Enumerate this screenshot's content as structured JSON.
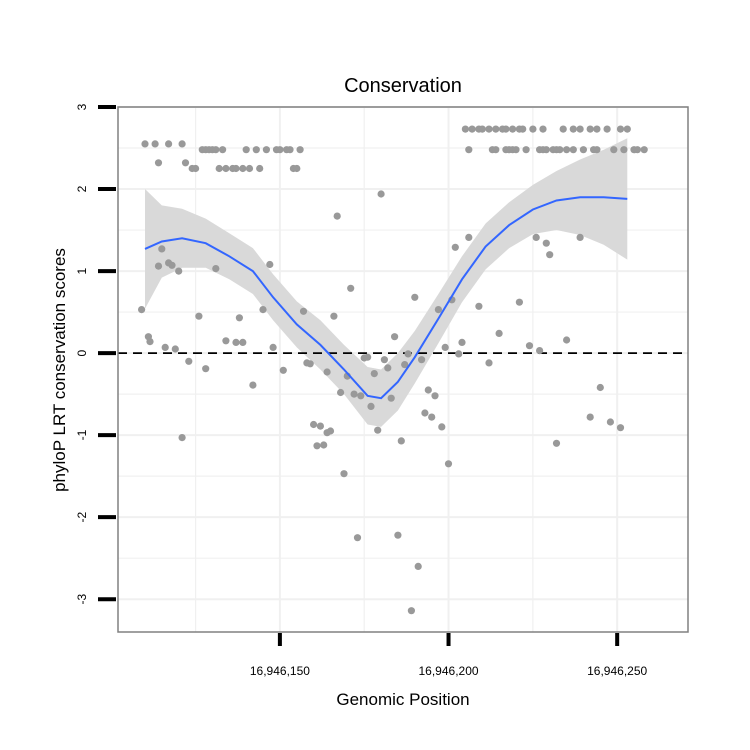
{
  "chart_data": {
    "type": "scatter",
    "title": "Conservation",
    "xlabel": "Genomic Position",
    "ylabel": "phyloP LRT conservation scores",
    "xlim": [
      16946102,
      16946271
    ],
    "ylim": [
      -3.4,
      3.0
    ],
    "xticks": [
      {
        "value": 16946150,
        "label": "16,946,150"
      },
      {
        "value": 16946200,
        "label": "16,946,200"
      },
      {
        "value": 16946250,
        "label": "16,946,250"
      }
    ],
    "yticks": [
      {
        "value": -3,
        "label": "-3"
      },
      {
        "value": -2,
        "label": "-2"
      },
      {
        "value": -1,
        "label": "-1"
      },
      {
        "value": 0,
        "label": "0"
      },
      {
        "value": 1,
        "label": "1"
      },
      {
        "value": 2,
        "label": "2"
      },
      {
        "value": 3,
        "label": "3"
      }
    ],
    "reference_line": {
      "y": 0,
      "style": "dashed"
    },
    "grid": true,
    "colors": {
      "points": "#999999",
      "smooth": "#3366ff",
      "ribbon": "#d9d9d9",
      "panel_border": "#808080"
    },
    "points": [
      {
        "x": 16946110,
        "y": 2.55
      },
      {
        "x": 16946113,
        "y": 2.55
      },
      {
        "x": 16946117,
        "y": 2.55
      },
      {
        "x": 16946121,
        "y": 2.55
      },
      {
        "x": 16946114,
        "y": 2.32
      },
      {
        "x": 16946122,
        "y": 2.32
      },
      {
        "x": 16946124,
        "y": 2.25
      },
      {
        "x": 16946125,
        "y": 2.25
      },
      {
        "x": 16946127,
        "y": 2.48
      },
      {
        "x": 16946128,
        "y": 2.48
      },
      {
        "x": 16946129,
        "y": 2.48
      },
      {
        "x": 16946130,
        "y": 2.48
      },
      {
        "x": 16946131,
        "y": 2.48
      },
      {
        "x": 16946133,
        "y": 2.48
      },
      {
        "x": 16946132,
        "y": 2.25
      },
      {
        "x": 16946134,
        "y": 2.25
      },
      {
        "x": 16946136,
        "y": 2.25
      },
      {
        "x": 16946137,
        "y": 2.25
      },
      {
        "x": 16946139,
        "y": 2.25
      },
      {
        "x": 16946141,
        "y": 2.25
      },
      {
        "x": 16946144,
        "y": 2.25
      },
      {
        "x": 16946140,
        "y": 2.48
      },
      {
        "x": 16946143,
        "y": 2.48
      },
      {
        "x": 16946146,
        "y": 2.48
      },
      {
        "x": 16946149,
        "y": 2.48
      },
      {
        "x": 16946150,
        "y": 2.48
      },
      {
        "x": 16946152,
        "y": 2.48
      },
      {
        "x": 16946153,
        "y": 2.48
      },
      {
        "x": 16946154,
        "y": 2.25
      },
      {
        "x": 16946155,
        "y": 2.25
      },
      {
        "x": 16946156,
        "y": 2.48
      },
      {
        "x": 16946109,
        "y": 0.53
      },
      {
        "x": 16946111,
        "y": 0.2
      },
      {
        "x": 16946111.5,
        "y": 0.14
      },
      {
        "x": 16946114,
        "y": 1.06
      },
      {
        "x": 16946115,
        "y": 1.27
      },
      {
        "x": 16946116,
        "y": 0.07
      },
      {
        "x": 16946117,
        "y": 1.1
      },
      {
        "x": 16946118,
        "y": 1.07
      },
      {
        "x": 16946120,
        "y": 1.0
      },
      {
        "x": 16946119,
        "y": 0.05
      },
      {
        "x": 16946121,
        "y": -1.03
      },
      {
        "x": 16946123,
        "y": -0.1
      },
      {
        "x": 16946126,
        "y": 0.45
      },
      {
        "x": 16946128,
        "y": -0.19
      },
      {
        "x": 16946131,
        "y": 1.03
      },
      {
        "x": 16946134,
        "y": 0.15
      },
      {
        "x": 16946137,
        "y": 0.13
      },
      {
        "x": 16946138,
        "y": 0.43
      },
      {
        "x": 16946139,
        "y": 0.13
      },
      {
        "x": 16946142,
        "y": -0.39
      },
      {
        "x": 16946145,
        "y": 0.53
      },
      {
        "x": 16946147,
        "y": 1.08
      },
      {
        "x": 16946148,
        "y": 0.07
      },
      {
        "x": 16946151,
        "y": -0.21
      },
      {
        "x": 16946157,
        "y": 0.51
      },
      {
        "x": 16946158,
        "y": -0.12
      },
      {
        "x": 16946159,
        "y": -0.13
      },
      {
        "x": 16946160,
        "y": -0.87
      },
      {
        "x": 16946161,
        "y": -1.13
      },
      {
        "x": 16946162,
        "y": -0.89
      },
      {
        "x": 16946163,
        "y": -1.12
      },
      {
        "x": 16946164,
        "y": -0.97
      },
      {
        "x": 16946164,
        "y": -0.23
      },
      {
        "x": 16946165,
        "y": -0.95
      },
      {
        "x": 16946166,
        "y": 0.45
      },
      {
        "x": 16946167,
        "y": 1.67
      },
      {
        "x": 16946168,
        "y": -0.48
      },
      {
        "x": 16946169,
        "y": -1.47
      },
      {
        "x": 16946170,
        "y": -0.28
      },
      {
        "x": 16946171,
        "y": 0.79
      },
      {
        "x": 16946172,
        "y": -0.5
      },
      {
        "x": 16946173,
        "y": -2.25
      },
      {
        "x": 16946174,
        "y": -0.52
      },
      {
        "x": 16946175,
        "y": -0.06
      },
      {
        "x": 16946176,
        "y": -0.05
      },
      {
        "x": 16946177,
        "y": -0.65
      },
      {
        "x": 16946178,
        "y": -0.25
      },
      {
        "x": 16946179,
        "y": -0.94
      },
      {
        "x": 16946180,
        "y": 1.94
      },
      {
        "x": 16946181,
        "y": -0.08
      },
      {
        "x": 16946182,
        "y": -0.18
      },
      {
        "x": 16946183,
        "y": -0.55
      },
      {
        "x": 16946184,
        "y": 0.2
      },
      {
        "x": 16946185,
        "y": -2.22
      },
      {
        "x": 16946186,
        "y": -1.07
      },
      {
        "x": 16946187,
        "y": -0.14
      },
      {
        "x": 16946188,
        "y": -0.01
      },
      {
        "x": 16946189,
        "y": -3.14
      },
      {
        "x": 16946190,
        "y": 0.68
      },
      {
        "x": 16946191,
        "y": -2.6
      },
      {
        "x": 16946192,
        "y": -0.08
      },
      {
        "x": 16946193,
        "y": -0.73
      },
      {
        "x": 16946194,
        "y": -0.45
      },
      {
        "x": 16946195,
        "y": -0.78
      },
      {
        "x": 16946196,
        "y": -0.52
      },
      {
        "x": 16946197,
        "y": 0.53
      },
      {
        "x": 16946198,
        "y": -0.9
      },
      {
        "x": 16946199,
        "y": 0.07
      },
      {
        "x": 16946200,
        "y": -1.35
      },
      {
        "x": 16946201,
        "y": 0.65
      },
      {
        "x": 16946202,
        "y": 1.29
      },
      {
        "x": 16946203,
        "y": -0.01
      },
      {
        "x": 16946204,
        "y": 0.13
      },
      {
        "x": 16946206,
        "y": 1.41
      },
      {
        "x": 16946209,
        "y": 0.57
      },
      {
        "x": 16946212,
        "y": -0.12
      },
      {
        "x": 16946215,
        "y": 0.24
      },
      {
        "x": 16946221,
        "y": 0.62
      },
      {
        "x": 16946224,
        "y": 0.09
      },
      {
        "x": 16946226,
        "y": 1.41
      },
      {
        "x": 16946227,
        "y": 0.03
      },
      {
        "x": 16946229,
        "y": 1.34
      },
      {
        "x": 16946230,
        "y": 1.2
      },
      {
        "x": 16946232,
        "y": -1.1
      },
      {
        "x": 16946235,
        "y": 0.16
      },
      {
        "x": 16946239,
        "y": 1.41
      },
      {
        "x": 16946242,
        "y": -0.78
      },
      {
        "x": 16946245,
        "y": -0.42
      },
      {
        "x": 16946248,
        "y": -0.84
      },
      {
        "x": 16946251,
        "y": -0.91
      },
      {
        "x": 16946205,
        "y": 2.73
      },
      {
        "x": 16946207,
        "y": 2.73
      },
      {
        "x": 16946209,
        "y": 2.73
      },
      {
        "x": 16946210,
        "y": 2.73
      },
      {
        "x": 16946212,
        "y": 2.73
      },
      {
        "x": 16946214,
        "y": 2.73
      },
      {
        "x": 16946216,
        "y": 2.73
      },
      {
        "x": 16946217,
        "y": 2.73
      },
      {
        "x": 16946219,
        "y": 2.73
      },
      {
        "x": 16946221,
        "y": 2.73
      },
      {
        "x": 16946222,
        "y": 2.73
      },
      {
        "x": 16946225,
        "y": 2.73
      },
      {
        "x": 16946228,
        "y": 2.73
      },
      {
        "x": 16946234,
        "y": 2.73
      },
      {
        "x": 16946237,
        "y": 2.73
      },
      {
        "x": 16946239,
        "y": 2.73
      },
      {
        "x": 16946242,
        "y": 2.73
      },
      {
        "x": 16946244,
        "y": 2.73
      },
      {
        "x": 16946247,
        "y": 2.73
      },
      {
        "x": 16946251,
        "y": 2.73
      },
      {
        "x": 16946253,
        "y": 2.73
      },
      {
        "x": 16946206,
        "y": 2.48
      },
      {
        "x": 16946213,
        "y": 2.48
      },
      {
        "x": 16946214,
        "y": 2.48
      },
      {
        "x": 16946217,
        "y": 2.48
      },
      {
        "x": 16946218,
        "y": 2.48
      },
      {
        "x": 16946219,
        "y": 2.48
      },
      {
        "x": 16946220,
        "y": 2.48
      },
      {
        "x": 16946223,
        "y": 2.48
      },
      {
        "x": 16946227,
        "y": 2.48
      },
      {
        "x": 16946228,
        "y": 2.48
      },
      {
        "x": 16946229,
        "y": 2.48
      },
      {
        "x": 16946231,
        "y": 2.48
      },
      {
        "x": 16946232,
        "y": 2.48
      },
      {
        "x": 16946233,
        "y": 2.48
      },
      {
        "x": 16946235,
        "y": 2.48
      },
      {
        "x": 16946237,
        "y": 2.48
      },
      {
        "x": 16946240,
        "y": 2.48
      },
      {
        "x": 16946243,
        "y": 2.48
      },
      {
        "x": 16946244,
        "y": 2.48
      },
      {
        "x": 16946249,
        "y": 2.48
      },
      {
        "x": 16946252,
        "y": 2.48
      },
      {
        "x": 16946255,
        "y": 2.48
      },
      {
        "x": 16946256,
        "y": 2.48
      },
      {
        "x": 16946258,
        "y": 2.48
      }
    ],
    "smooth": [
      {
        "x": 16946110,
        "y": 1.27,
        "lo": 0.54,
        "hi": 2.0
      },
      {
        "x": 16946115,
        "y": 1.36,
        "lo": 0.92,
        "hi": 1.8
      },
      {
        "x": 16946121,
        "y": 1.4,
        "lo": 1.04,
        "hi": 1.76
      },
      {
        "x": 16946128,
        "y": 1.34,
        "lo": 1.04,
        "hi": 1.64
      },
      {
        "x": 16946135,
        "y": 1.18,
        "lo": 0.9,
        "hi": 1.46
      },
      {
        "x": 16946142,
        "y": 1.0,
        "lo": 0.72,
        "hi": 1.28
      },
      {
        "x": 16946148,
        "y": 0.68,
        "lo": 0.4,
        "hi": 0.96
      },
      {
        "x": 16946155,
        "y": 0.35,
        "lo": 0.07,
        "hi": 0.63
      },
      {
        "x": 16946162,
        "y": 0.1,
        "lo": -0.2,
        "hi": 0.4
      },
      {
        "x": 16946169,
        "y": -0.2,
        "lo": -0.5,
        "hi": 0.1
      },
      {
        "x": 16946176,
        "y": -0.52,
        "lo": -0.87,
        "hi": -0.17
      },
      {
        "x": 16946180,
        "y": -0.55,
        "lo": -0.9,
        "hi": -0.2
      },
      {
        "x": 16946185,
        "y": -0.35,
        "lo": -0.7,
        "hi": 0.0
      },
      {
        "x": 16946190,
        "y": -0.05,
        "lo": -0.37,
        "hi": 0.27
      },
      {
        "x": 16946197,
        "y": 0.42,
        "lo": 0.12,
        "hi": 0.72
      },
      {
        "x": 16946204,
        "y": 0.9,
        "lo": 0.62,
        "hi": 1.18
      },
      {
        "x": 16946211,
        "y": 1.3,
        "lo": 1.02,
        "hi": 1.58
      },
      {
        "x": 16946218,
        "y": 1.56,
        "lo": 1.28,
        "hi": 1.84
      },
      {
        "x": 16946225,
        "y": 1.75,
        "lo": 1.45,
        "hi": 2.05
      },
      {
        "x": 16946232,
        "y": 1.86,
        "lo": 1.5,
        "hi": 2.22
      },
      {
        "x": 16946239,
        "y": 1.9,
        "lo": 1.44,
        "hi": 2.36
      },
      {
        "x": 16946246,
        "y": 1.9,
        "lo": 1.32,
        "hi": 2.48
      },
      {
        "x": 16946253,
        "y": 1.88,
        "lo": 1.14,
        "hi": 2.62
      }
    ]
  }
}
